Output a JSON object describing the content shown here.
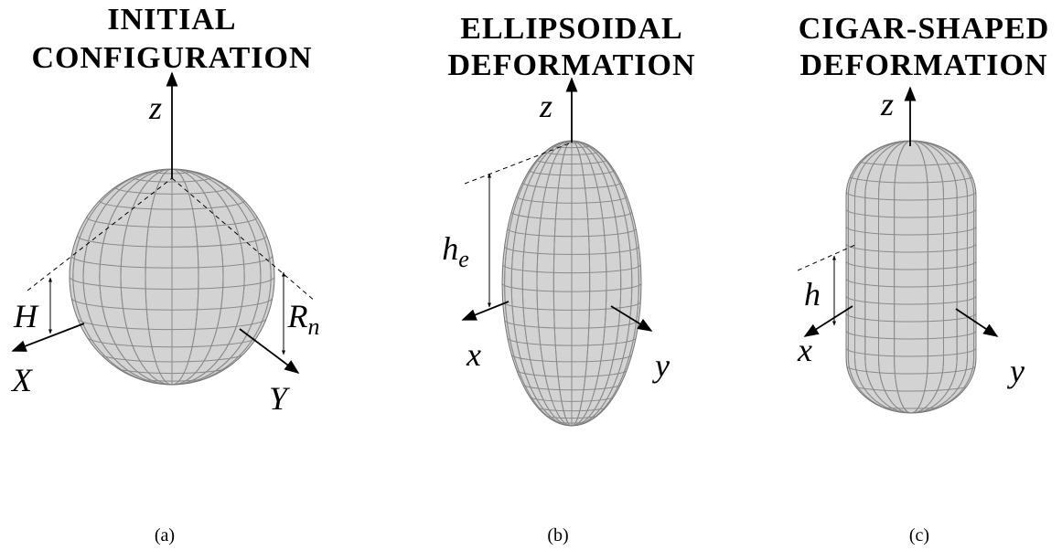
{
  "panels": [
    {
      "title": [
        "INITIAL",
        "CONFIGURATION"
      ],
      "axes": {
        "z": "z",
        "x": "X",
        "y": "Y"
      },
      "measures": [
        {
          "base": "H"
        },
        {
          "base": "R",
          "sub": "n"
        }
      ],
      "caption": "(a)"
    },
    {
      "title": [
        "ELLIPSOIDAL",
        "DEFORMATION"
      ],
      "axes": {
        "z": "z",
        "x": "x",
        "y": "y"
      },
      "measures": [
        {
          "base": "h",
          "sub": "e"
        }
      ],
      "caption": "(b)"
    },
    {
      "title": [
        "CIGAR-SHAPED",
        "DEFORMATION"
      ],
      "axes": {
        "z": "z",
        "x": "x",
        "y": "y"
      },
      "measures": [
        {
          "base": "h"
        }
      ],
      "caption": "(c)"
    }
  ]
}
